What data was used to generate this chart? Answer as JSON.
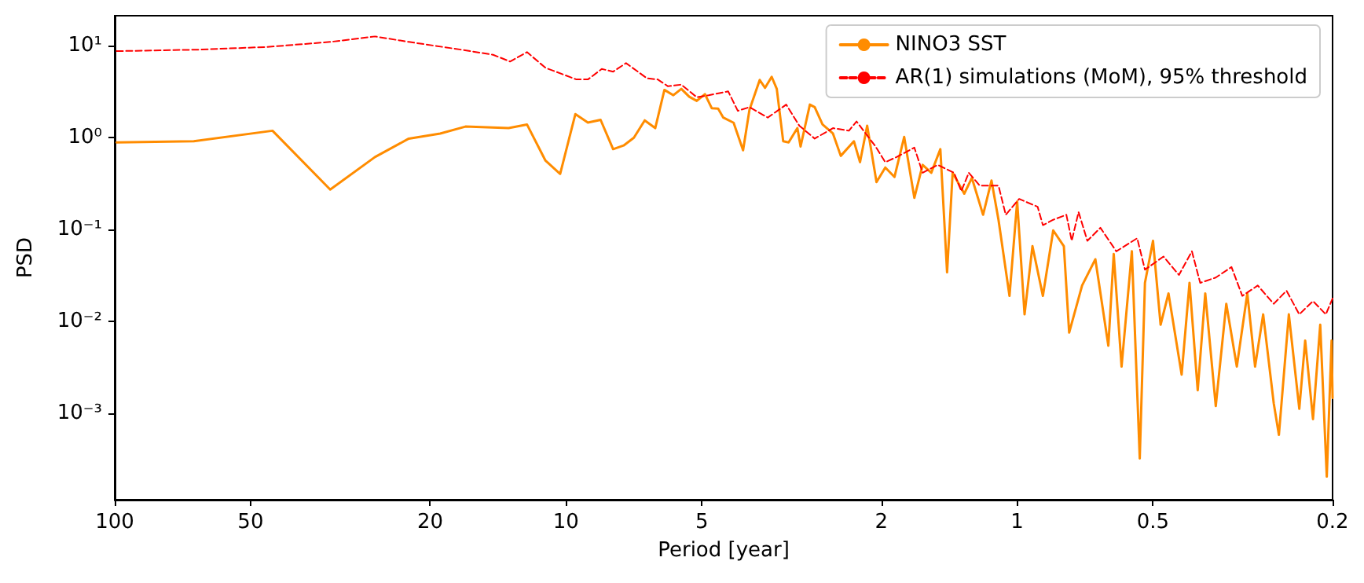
{
  "chart_data": {
    "type": "line",
    "xlabel": "Period [year]",
    "ylabel": "PSD",
    "log": "xy",
    "grid": false,
    "legend": "top right",
    "marker": "none",
    "xlim": [
      100,
      0.2
    ],
    "xticks": [
      100,
      50,
      20,
      10,
      5,
      2,
      1,
      0.5,
      0.2
    ],
    "ylim": [
      0.000115,
      21
    ],
    "yticks": [
      {
        "value": 0.001,
        "label": "10⁻³"
      },
      {
        "value": 0.01,
        "label": "10⁻²"
      },
      {
        "value": 0.1,
        "label": "10⁻¹"
      },
      {
        "value": 1,
        "label": "10⁰"
      },
      {
        "value": 10,
        "label": "10¹"
      }
    ],
    "series": [
      {
        "name": "NINO3 SST",
        "color": "#ff8c00",
        "line_style": "solid",
        "x": [
          99,
          66.8,
          44.7,
          33.3,
          26.5,
          22.3,
          19.0,
          16.7,
          13.4,
          12.2,
          11.1,
          10.3,
          9.53,
          8.94,
          8.38,
          7.86,
          7.45,
          7.07,
          6.69,
          6.34,
          6.05,
          5.78,
          5.55,
          5.33,
          5.13,
          4.92,
          4.75,
          4.6,
          4.48,
          4.25,
          4.05,
          3.92,
          3.72,
          3.62,
          3.5,
          3.41,
          3.3,
          3.21,
          3.07,
          3.02,
          2.88,
          2.81,
          2.7,
          2.56,
          2.46,
          2.3,
          2.23,
          2.15,
          2.05,
          1.96,
          1.87,
          1.78,
          1.69,
          1.62,
          1.55,
          1.48,
          1.43,
          1.39,
          1.31,
          1.26,
          1.19,
          1.14,
          1.1,
          1.04,
          1.0,
          0.963,
          0.925,
          0.877,
          0.832,
          0.788,
          0.767,
          0.718,
          0.671,
          0.628,
          0.611,
          0.587,
          0.557,
          0.535,
          0.521,
          0.5,
          0.481,
          0.462,
          0.432,
          0.415,
          0.398,
          0.383,
          0.363,
          0.344,
          0.326,
          0.309,
          0.297,
          0.285,
          0.27,
          0.263,
          0.25,
          0.237,
          0.23,
          0.221,
          0.213,
          0.206,
          0.201,
          0.2
        ],
        "values": [
          0.88,
          0.906,
          1.18,
          0.271,
          0.611,
          0.969,
          1.1,
          1.31,
          1.26,
          1.38,
          0.558,
          0.401,
          1.79,
          1.45,
          1.55,
          0.744,
          0.815,
          0.99,
          1.53,
          1.26,
          3.28,
          2.87,
          3.36,
          2.76,
          2.49,
          2.95,
          2.07,
          2.05,
          1.64,
          1.44,
          0.724,
          1.99,
          4.21,
          3.45,
          4.55,
          3.36,
          0.906,
          0.882,
          1.26,
          0.796,
          2.27,
          2.13,
          1.38,
          1.1,
          0.629,
          0.906,
          0.537,
          1.34,
          0.326,
          0.47,
          0.371,
          1.01,
          0.22,
          0.502,
          0.412,
          0.744,
          0.0341,
          0.412,
          0.244,
          0.362,
          0.144,
          0.339,
          0.127,
          0.0189,
          0.201,
          0.0119,
          0.0656,
          0.0189,
          0.0973,
          0.0656,
          0.00754,
          0.0245,
          0.0473,
          0.00543,
          0.0539,
          0.00322,
          0.0577,
          0.000323,
          0.0262,
          0.075,
          0.00917,
          0.0201,
          0.00264,
          0.0262,
          0.00178,
          0.0201,
          0.0012,
          0.0155,
          0.00322,
          0.0201,
          0.00322,
          0.0119,
          0.00128,
          0.000583,
          0.0119,
          0.00112,
          0.00618,
          0.000865,
          0.00917,
          0.000205,
          0.00618,
          0.00147
        ]
      },
      {
        "name": "AR(1) simulations (MoM), 95% threshold",
        "color": "#ff0000",
        "line_style": "dashed",
        "x": [
          99,
          65.0,
          45.9,
          33.3,
          26.5,
          22.3,
          17.1,
          14.5,
          13.3,
          12.2,
          11.1,
          9.48,
          8.94,
          8.33,
          7.86,
          7.36,
          6.61,
          6.26,
          5.94,
          5.55,
          5.13,
          4.83,
          4.37,
          4.16,
          3.92,
          3.57,
          3.25,
          3.04,
          2.81,
          2.56,
          2.36,
          2.27,
          2.06,
          1.96,
          1.85,
          1.69,
          1.62,
          1.5,
          1.38,
          1.33,
          1.28,
          1.21,
          1.1,
          1.06,
          0.99,
          0.901,
          0.877,
          0.832,
          0.778,
          0.757,
          0.731,
          0.699,
          0.654,
          0.603,
          0.542,
          0.521,
          0.474,
          0.438,
          0.41,
          0.393,
          0.363,
          0.335,
          0.317,
          0.293,
          0.27,
          0.253,
          0.237,
          0.221,
          0.207,
          0.2
        ],
        "values": [
          8.65,
          8.99,
          9.61,
          10.9,
          12.5,
          10.9,
          8.99,
          7.9,
          6.67,
          8.44,
          5.7,
          4.26,
          4.26,
          5.54,
          5.18,
          6.41,
          4.38,
          4.26,
          3.59,
          3.74,
          2.73,
          2.87,
          3.16,
          1.94,
          2.13,
          1.64,
          2.27,
          1.34,
          0.969,
          1.26,
          1.18,
          1.49,
          0.796,
          0.537,
          0.611,
          0.774,
          0.412,
          0.502,
          0.412,
          0.26,
          0.412,
          0.298,
          0.298,
          0.144,
          0.214,
          0.176,
          0.111,
          0.127,
          0.144,
          0.075,
          0.154,
          0.075,
          0.104,
          0.0577,
          0.08,
          0.0364,
          0.0506,
          0.0319,
          0.0577,
          0.0262,
          0.0299,
          0.0389,
          0.0189,
          0.0245,
          0.0155,
          0.0215,
          0.0119,
          0.0166,
          0.0119,
          0.0177
        ]
      }
    ]
  }
}
